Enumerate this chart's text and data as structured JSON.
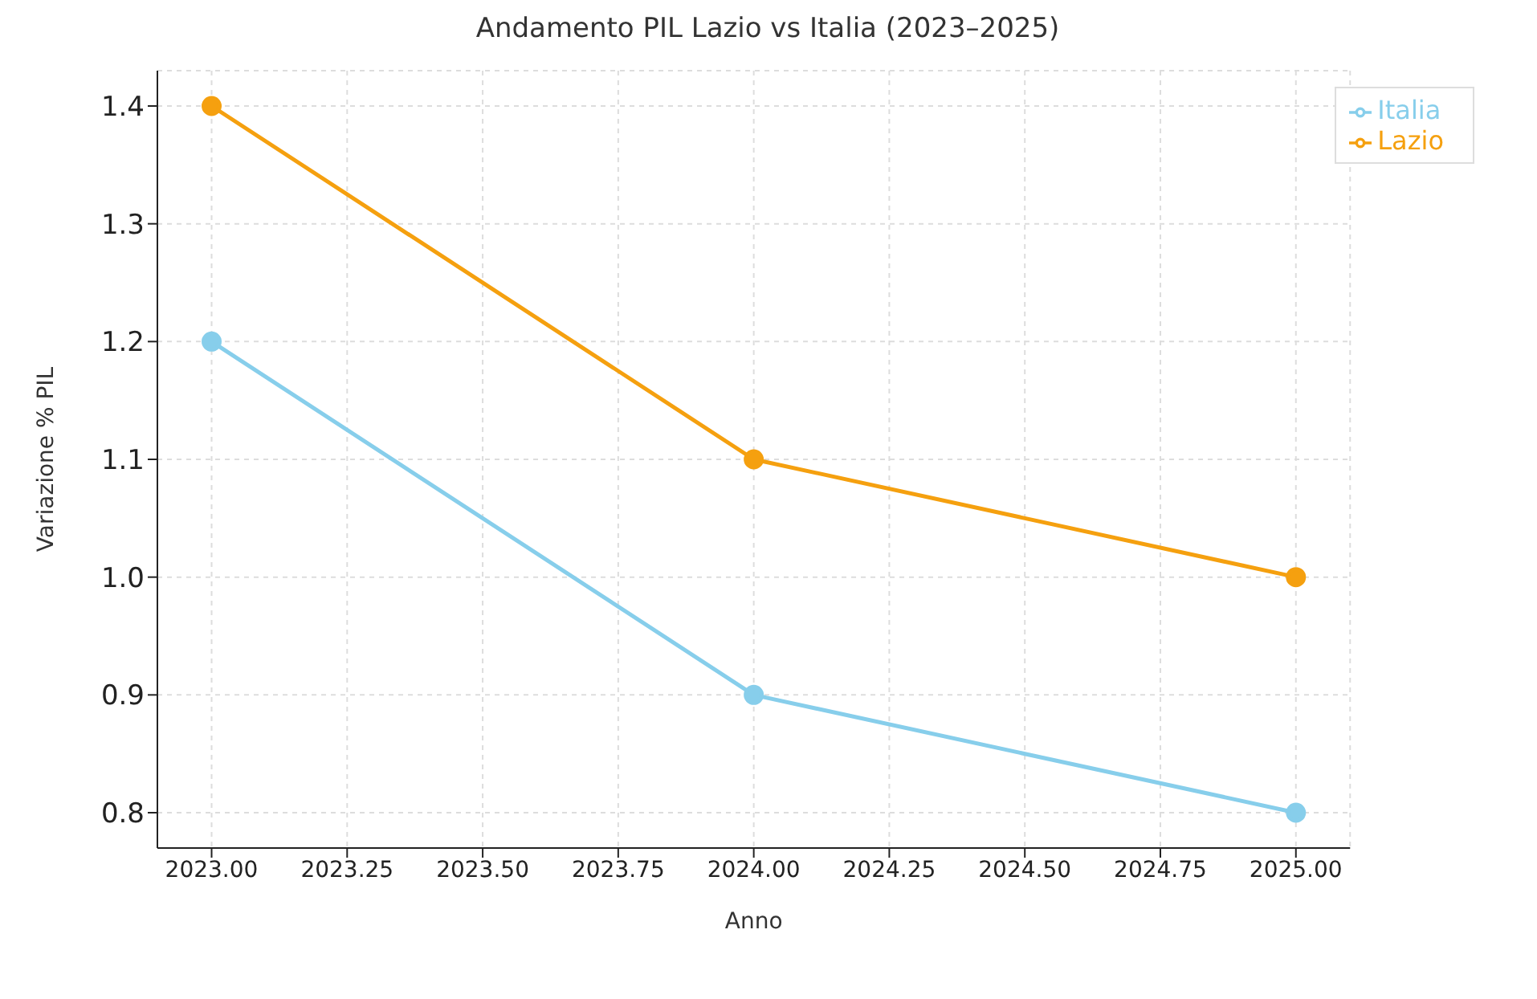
{
  "chart_data": {
    "type": "line",
    "title": "Andamento PIL Lazio vs Italia (2023–2025)",
    "xlabel": "Anno",
    "ylabel": "Variazione % PIL",
    "x": [
      2023,
      2024,
      2025
    ],
    "series": [
      {
        "name": "Lazio",
        "color": "#f5a00f",
        "values": [
          1.4,
          1.1,
          1.0
        ]
      },
      {
        "name": "Italia",
        "color": "#87ceeb",
        "values": [
          1.2,
          0.9,
          0.8
        ]
      }
    ],
    "xlim": [
      2022.9,
      2025.1
    ],
    "xticks": [
      {
        "value": 2023,
        "label": "2023.00"
      },
      {
        "value": 2023.25,
        "label": "2023.25"
      },
      {
        "value": 2023.5,
        "label": "2023.50"
      },
      {
        "value": 2023.75,
        "label": "2023.75"
      },
      {
        "value": 2024,
        "label": "2024.00"
      },
      {
        "value": 2024.25,
        "label": "2024.25"
      },
      {
        "value": 2024.5,
        "label": "2024.50"
      },
      {
        "value": 2024.75,
        "label": "2024.75"
      },
      {
        "value": 2025,
        "label": "2025.00"
      }
    ],
    "ylim": [
      0.77,
      1.43
    ],
    "yticks": [
      0.8,
      0.9,
      {
        "value": 1,
        "label": "1.0"
      },
      1.1,
      1.2,
      1.3,
      1.4
    ],
    "grid": true,
    "legend": "top right",
    "marker": "circle",
    "line_style": "solid"
  }
}
